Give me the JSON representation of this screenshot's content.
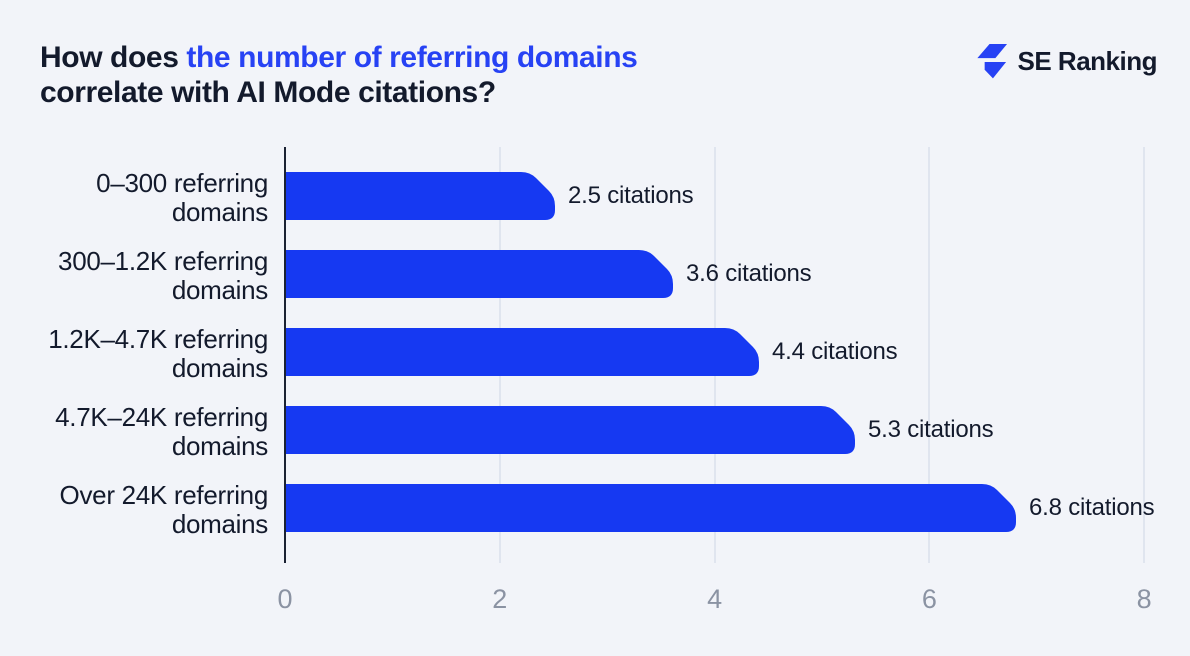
{
  "header": {
    "title": {
      "part1": "How does ",
      "highlight": "the number of referring domains",
      "part2": "correlate with AI Mode citations?"
    },
    "logo": {
      "text": "SE Ranking"
    }
  },
  "chart_data": {
    "type": "bar",
    "orientation": "horizontal",
    "title": "How does the number of referring domains correlate with AI Mode citations?",
    "categories": [
      "0–300 referring domains",
      "300–1.2K referring domains",
      "1.2K–4.7K referring domains",
      "4.7K–24K referring domains",
      "Over 24K referring domains"
    ],
    "values": [
      2.5,
      3.6,
      4.4,
      5.3,
      6.8
    ],
    "value_labels": [
      "2.5 citations",
      "3.6 citations",
      "4.4 citations",
      "5.3 citations",
      "6.8 citations"
    ],
    "unit": "citations",
    "x_ticks": [
      "0",
      "2",
      "4",
      "6",
      "8"
    ],
    "xlim": [
      0,
      8
    ],
    "xlabel": "",
    "ylabel": "",
    "legend": "none",
    "grid": "vertical-gridlines-at-ticks",
    "colors": {
      "bar": "#1639F2",
      "accent": "#2742F4",
      "text_dark": "#131A2C",
      "tick_gray": "#8B93A3",
      "gridline": "#E0E5EF",
      "axis_line": "#1B2233",
      "background": "#F2F4F9"
    }
  }
}
